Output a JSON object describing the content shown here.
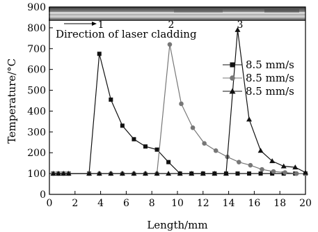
{
  "chart_data": {
    "type": "line",
    "xlabel": "Length/mm",
    "ylabel": "Temperature/°C",
    "xlim": [
      0,
      20
    ],
    "ylim": [
      0,
      900
    ],
    "xticks": [
      0,
      2,
      4,
      6,
      8,
      10,
      12,
      14,
      16,
      18,
      20
    ],
    "yticks": [
      0,
      100,
      200,
      300,
      400,
      500,
      600,
      700,
      800,
      900
    ],
    "grid": false,
    "legend_position": "right",
    "annotations": {
      "direction_text": "Direction of laser cladding",
      "markers": [
        "1",
        "2",
        "3"
      ]
    },
    "series": [
      {
        "name": "8.5 mm/s",
        "marker": "square",
        "color": "#111111",
        "x": [
          0.3,
          0.7,
          1.1,
          1.5,
          3.1,
          3.9,
          4.8,
          5.7,
          6.6,
          7.5,
          8.4,
          9.3,
          10.2,
          11.1,
          12.0,
          12.9,
          13.8,
          14.7,
          15.6,
          16.5,
          17.4,
          18.3,
          19.2,
          20.0
        ],
        "y": [
          100,
          100,
          100,
          100,
          100,
          675,
          455,
          330,
          265,
          230,
          215,
          155,
          100,
          100,
          100,
          100,
          100,
          100,
          100,
          100,
          100,
          100,
          100,
          100
        ]
      },
      {
        "name": "8.5 mm/s",
        "marker": "circle",
        "color": "#777777",
        "x": [
          0.3,
          0.7,
          1.1,
          1.5,
          3.1,
          3.9,
          4.8,
          5.7,
          6.6,
          7.5,
          8.4,
          9.4,
          10.3,
          11.2,
          12.1,
          13.0,
          13.9,
          14.8,
          15.7,
          16.6,
          17.5,
          18.4,
          19.3,
          20.0
        ],
        "y": [
          100,
          100,
          100,
          100,
          100,
          100,
          100,
          100,
          100,
          100,
          100,
          720,
          435,
          320,
          245,
          210,
          180,
          155,
          140,
          120,
          110,
          105,
          100,
          100
        ]
      },
      {
        "name": "8.5 mm/s",
        "marker": "triangle",
        "color": "#111111",
        "x": [
          0.3,
          0.7,
          1.1,
          1.5,
          3.1,
          3.9,
          4.8,
          5.7,
          6.6,
          7.5,
          8.4,
          9.3,
          10.2,
          11.1,
          12.0,
          12.9,
          13.8,
          14.7,
          15.6,
          16.5,
          17.4,
          18.3,
          19.2,
          20.0
        ],
        "y": [
          100,
          100,
          100,
          100,
          100,
          100,
          100,
          100,
          100,
          100,
          100,
          100,
          100,
          100,
          100,
          100,
          100,
          790,
          360,
          210,
          160,
          135,
          130,
          105
        ]
      }
    ]
  }
}
